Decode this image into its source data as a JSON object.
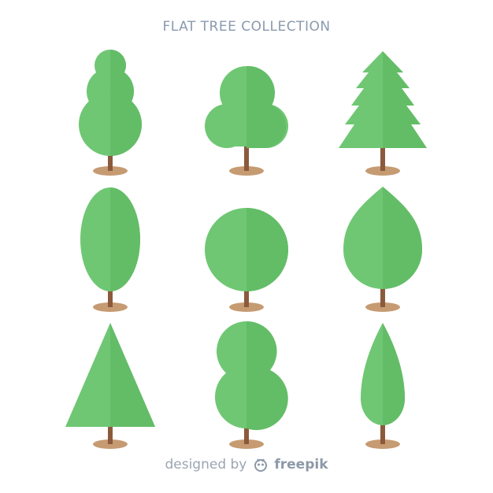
{
  "title": "FLAT TREE COLLECTION",
  "colors": {
    "leaf_light": "#74cd78",
    "leaf_dark": "#63bd67",
    "trunk": "#8b5a3c",
    "shadow": "#c69b72",
    "footer_text": "#9aa5b2"
  },
  "trees": [
    {
      "name": "stacked-round-tree"
    },
    {
      "name": "bushy-tree"
    },
    {
      "name": "pine-tree"
    },
    {
      "name": "oval-tree"
    },
    {
      "name": "round-tree"
    },
    {
      "name": "leaf-tree"
    },
    {
      "name": "triangle-tree"
    },
    {
      "name": "double-round-tree"
    },
    {
      "name": "cypress-tree"
    }
  ],
  "footer": {
    "prefix": "designed by",
    "brand": "freepik",
    "logo_icon": "freepik-logo-icon"
  }
}
